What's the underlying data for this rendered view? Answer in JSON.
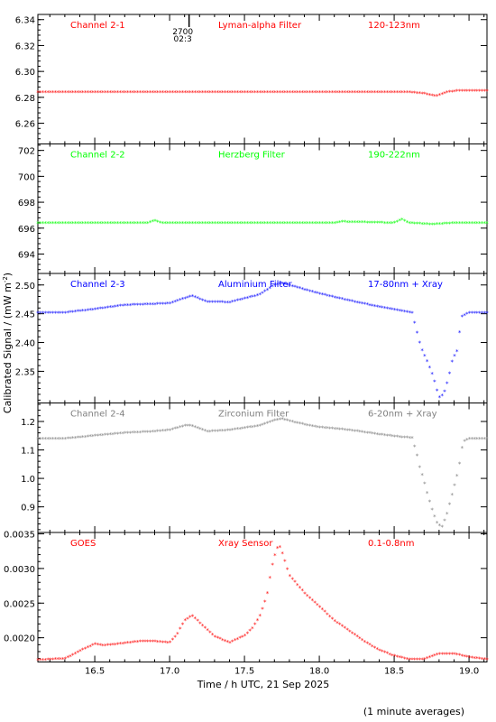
{
  "figure": {
    "ylabel": "Calibrated Signal / (mW m",
    "ylabel_sup": "-2",
    "ylabel_end": ")",
    "xlabel": "Time / h UTC, 21 Sep 2025",
    "footnote": "(1 minute averages)",
    "marker": {
      "x": 17.13,
      "labels": [
        "2700",
        "02:3"
      ]
    }
  },
  "colors": {
    "red": "#ff0000",
    "green": "#00ff00",
    "blue": "#0000ff",
    "gray": "#808080",
    "axis": "#000000"
  },
  "chart_data": [
    {
      "type": "scatter",
      "channel": "Channel 2-1",
      "filter": "Lyman-alpha Filter",
      "band": "120-123nm",
      "color": "#ff0000",
      "xlim": [
        16.12,
        19.12
      ],
      "ylim": [
        6.244,
        6.344
      ],
      "yticks": [
        6.26,
        6.28,
        6.3,
        6.32,
        6.34
      ],
      "ytick_labels": [
        "6.26",
        "6.28",
        "6.30",
        "6.32",
        "6.34"
      ],
      "x": [
        16.12,
        16.4,
        16.8,
        17.2,
        17.6,
        18.0,
        18.3,
        18.6,
        18.7,
        18.78,
        18.85,
        18.92,
        19.12
      ],
      "y": [
        6.284,
        6.284,
        6.284,
        6.284,
        6.284,
        6.284,
        6.284,
        6.284,
        6.283,
        6.281,
        6.284,
        6.285,
        6.285
      ]
    },
    {
      "type": "scatter",
      "channel": "Channel 2-2",
      "filter": "Herzberg Filter",
      "band": "190-222nm",
      "color": "#00ff00",
      "xlim": [
        16.12,
        19.12
      ],
      "ylim": [
        692.5,
        702.5
      ],
      "yticks": [
        694,
        696,
        698,
        700,
        702
      ],
      "ytick_labels": [
        "694",
        "696",
        "698",
        "700",
        "702"
      ],
      "x": [
        16.12,
        16.5,
        16.85,
        16.9,
        16.95,
        17.5,
        18.1,
        18.15,
        18.5,
        18.55,
        18.6,
        18.75,
        18.9,
        19.12
      ],
      "y": [
        696.4,
        696.4,
        696.4,
        696.6,
        696.4,
        696.4,
        696.4,
        696.5,
        696.4,
        696.7,
        696.4,
        696.3,
        696.4,
        696.4
      ]
    },
    {
      "type": "scatter",
      "channel": "Channel 2-3",
      "filter": "Aluminium Filter",
      "band": "17-80nm + Xray",
      "color": "#0000ff",
      "xlim": [
        16.12,
        19.12
      ],
      "ylim": [
        2.295,
        2.52
      ],
      "yticks": [
        2.35,
        2.4,
        2.45,
        2.5
      ],
      "ytick_labels": [
        "2.35",
        "2.40",
        "2.45",
        "2.50"
      ],
      "x": [
        16.12,
        16.3,
        16.5,
        16.7,
        16.9,
        17.0,
        17.1,
        17.15,
        17.25,
        17.4,
        17.6,
        17.7,
        17.75,
        17.85,
        18.0,
        18.2,
        18.4,
        18.55,
        18.62,
        18.65,
        18.68,
        18.72,
        18.76,
        18.8,
        18.83,
        18.86,
        18.89,
        18.92,
        18.95,
        19.0,
        19.12
      ],
      "y": [
        2.452,
        2.452,
        2.458,
        2.465,
        2.467,
        2.468,
        2.477,
        2.481,
        2.471,
        2.47,
        2.483,
        2.5,
        2.503,
        2.496,
        2.485,
        2.473,
        2.462,
        2.455,
        2.452,
        2.421,
        2.39,
        2.368,
        2.342,
        2.305,
        2.31,
        2.335,
        2.371,
        2.385,
        2.445,
        2.452,
        2.452
      ]
    },
    {
      "type": "scatter",
      "channel": "Channel 2-4",
      "filter": "Zirconium Filter",
      "band": "6-20nm + Xray",
      "color": "#808080",
      "xlim": [
        16.12,
        19.12
      ],
      "ylim": [
        0.81,
        1.265
      ],
      "yticks": [
        0.9,
        1.0,
        1.1,
        1.2
      ],
      "ytick_labels": [
        "0.9",
        "1.0",
        "1.1",
        "1.2"
      ],
      "x": [
        16.12,
        16.3,
        16.5,
        16.7,
        16.9,
        17.0,
        17.1,
        17.15,
        17.25,
        17.4,
        17.6,
        17.7,
        17.75,
        17.85,
        18.0,
        18.2,
        18.4,
        18.55,
        18.62,
        18.65,
        18.67,
        18.7,
        18.73,
        18.76,
        18.79,
        18.82,
        18.85,
        18.87,
        18.9,
        18.93,
        18.96,
        19.0,
        19.12
      ],
      "y": [
        1.14,
        1.14,
        1.15,
        1.16,
        1.165,
        1.17,
        1.185,
        1.185,
        1.165,
        1.17,
        1.185,
        1.205,
        1.21,
        1.195,
        1.18,
        1.17,
        1.155,
        1.145,
        1.143,
        1.09,
        1.04,
        0.99,
        0.93,
        0.88,
        0.84,
        0.83,
        0.87,
        0.91,
        0.97,
        1.03,
        1.13,
        1.14,
        1.14
      ]
    },
    {
      "type": "scatter",
      "channel": "GOES",
      "filter": "Xray Sensor",
      "band": "0.1-0.8nm",
      "color": "#ff0000",
      "xlim": [
        16.12,
        19.12
      ],
      "ylim": [
        0.00165,
        0.00352
      ],
      "yticks": [
        0.002,
        0.0025,
        0.003,
        0.0035
      ],
      "ytick_labels": [
        "0.0020",
        "0.0025",
        "0.0030",
        "0.0035"
      ],
      "x": [
        16.12,
        16.3,
        16.35,
        16.42,
        16.5,
        16.55,
        16.65,
        16.8,
        16.9,
        17.0,
        17.05,
        17.1,
        17.15,
        17.2,
        17.3,
        17.4,
        17.5,
        17.55,
        17.6,
        17.65,
        17.68,
        17.71,
        17.73,
        17.76,
        17.8,
        17.9,
        18.0,
        18.1,
        18.2,
        18.3,
        18.4,
        18.5,
        18.6,
        18.7,
        18.8,
        18.9,
        19.0,
        19.12
      ],
      "y": [
        0.00168,
        0.0017,
        0.00175,
        0.00183,
        0.00191,
        0.00189,
        0.00191,
        0.00195,
        0.00195,
        0.00193,
        0.00205,
        0.00225,
        0.00232,
        0.00222,
        0.00202,
        0.00193,
        0.00203,
        0.00213,
        0.0023,
        0.0026,
        0.003,
        0.00325,
        0.00335,
        0.00318,
        0.0029,
        0.00265,
        0.00245,
        0.00225,
        0.0021,
        0.00195,
        0.00182,
        0.00174,
        0.00169,
        0.00169,
        0.00177,
        0.00177,
        0.00172,
        0.00169
      ]
    }
  ],
  "shared_xaxis": {
    "ticks": [
      16.5,
      17.0,
      17.5,
      18.0,
      18.5,
      19.0
    ],
    "tick_labels": [
      "16.5",
      "17.0",
      "17.5",
      "18.0",
      "18.5",
      "19.0"
    ]
  }
}
